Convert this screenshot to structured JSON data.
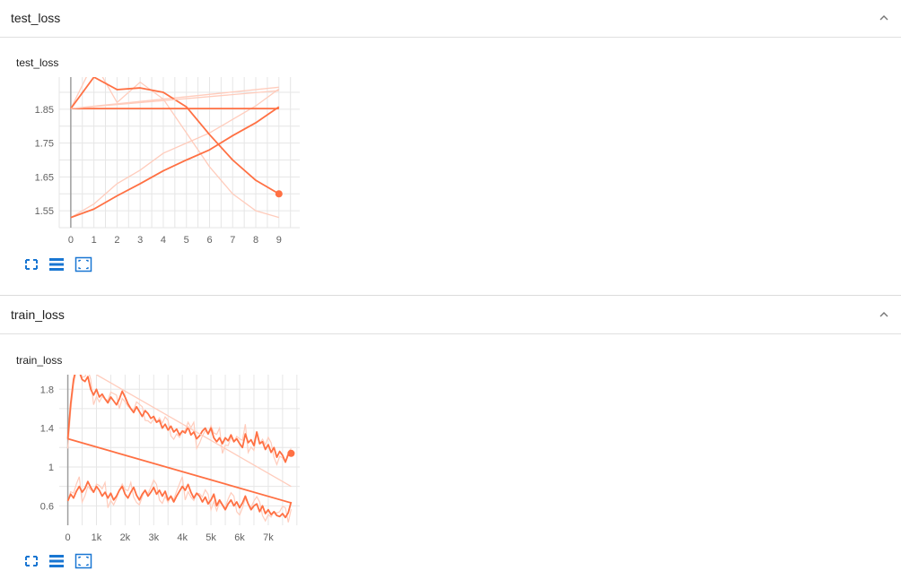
{
  "sections": [
    {
      "header": "test_loss",
      "card_title": "test_loss"
    },
    {
      "header": "train_loss",
      "card_title": "train_loss"
    }
  ],
  "colors": {
    "series": "#ff7043",
    "series_light": "#ffccbc",
    "grid": "#e6e6e6",
    "axis": "#9e9e9e",
    "tool_icon": "#1976d2"
  },
  "icons": [
    "expand-icon",
    "data-table-icon",
    "fit-domain-icon",
    "chevron-up-icon"
  ],
  "chart_data": [
    {
      "type": "line",
      "title": "test_loss",
      "xlim": [
        -0.5,
        9.9
      ],
      "ylim": [
        1.5,
        1.945
      ],
      "x_ticks": [
        0,
        1,
        2,
        3,
        4,
        5,
        6,
        7,
        8,
        9
      ],
      "y_ticks": [
        1.55,
        1.65,
        1.75,
        1.85
      ],
      "x_tick_labels": [
        "0",
        "1",
        "2",
        "3",
        "4",
        "5",
        "6",
        "7",
        "8",
        "9"
      ],
      "y_tick_labels": [
        "1.55",
        "1.65",
        "1.75",
        "1.85"
      ],
      "grid": true,
      "series": [
        {
          "x": [
            0,
            1,
            2,
            3,
            4,
            5,
            6,
            7,
            8,
            9
          ],
          "y": [
            1.852,
            1.945,
            1.908,
            1.913,
            1.9,
            1.857,
            1.775,
            1.7,
            1.64,
            1.6
          ],
          "raw_y": [
            1.852,
            1.99,
            1.87,
            1.93,
            1.88,
            1.78,
            1.68,
            1.6,
            1.55,
            1.53
          ],
          "end_marker": true
        },
        {
          "x": [
            0,
            9
          ],
          "y": [
            1.852,
            1.852
          ],
          "raw_y": [
            1.852,
            1.852
          ]
        },
        {
          "x": [
            0,
            1,
            2,
            3,
            4,
            5,
            6,
            7,
            8,
            9
          ],
          "y": [
            1.53,
            1.555,
            1.594,
            1.63,
            1.668,
            1.7,
            1.73,
            1.772,
            1.81,
            1.857
          ],
          "raw_y": [
            1.53,
            1.57,
            1.63,
            1.67,
            1.72,
            1.75,
            1.78,
            1.82,
            1.86,
            1.91
          ]
        },
        {
          "x": [
            0,
            9
          ],
          "y": [
            1.852,
            1.905
          ],
          "raw_y": [
            1.852,
            1.915
          ]
        }
      ]
    },
    {
      "type": "line",
      "title": "train_loss",
      "xlim": [
        -300,
        8100
      ],
      "ylim": [
        0.4,
        1.95
      ],
      "x_ticks": [
        0,
        1000,
        2000,
        3000,
        4000,
        5000,
        6000,
        7000
      ],
      "y_ticks": [
        0.6,
        1.0,
        1.4,
        1.8
      ],
      "x_tick_labels": [
        "0",
        "1k",
        "2k",
        "3k",
        "4k",
        "5k",
        "6k",
        "7k"
      ],
      "y_tick_labels": [
        "0.6",
        "1",
        "1.4",
        "1.8"
      ],
      "grid": true,
      "series": [
        {
          "x": [
            0,
            100,
            200,
            300,
            400,
            500,
            600,
            700,
            800,
            900,
            1000,
            1100,
            1200,
            1300,
            1400,
            1500,
            1600,
            1700,
            1800,
            1900,
            2000,
            2100,
            2200,
            2300,
            2400,
            2500,
            2600,
            2700,
            2800,
            2900,
            3000,
            3100,
            3200,
            3300,
            3400,
            3500,
            3600,
            3700,
            3800,
            3900,
            4000,
            4100,
            4200,
            4300,
            4400,
            4500,
            4600,
            4700,
            4800,
            4900,
            5000,
            5100,
            5200,
            5300,
            5400,
            5500,
            5600,
            5700,
            5800,
            5900,
            6000,
            6100,
            6200,
            6300,
            6400,
            6500,
            6600,
            6700,
            6800,
            6900,
            7000,
            7100,
            7200,
            7300,
            7400,
            7500,
            7600,
            7700,
            7800
          ],
          "y": [
            1.29,
            1.65,
            1.9,
            2.02,
            1.98,
            1.9,
            1.88,
            1.93,
            1.8,
            1.74,
            1.8,
            1.72,
            1.75,
            1.7,
            1.66,
            1.72,
            1.68,
            1.64,
            1.7,
            1.78,
            1.72,
            1.65,
            1.6,
            1.56,
            1.62,
            1.57,
            1.52,
            1.58,
            1.55,
            1.5,
            1.52,
            1.46,
            1.48,
            1.4,
            1.44,
            1.38,
            1.42,
            1.36,
            1.39,
            1.33,
            1.37,
            1.35,
            1.41,
            1.33,
            1.36,
            1.29,
            1.32,
            1.37,
            1.4,
            1.34,
            1.4,
            1.3,
            1.26,
            1.3,
            1.24,
            1.3,
            1.27,
            1.33,
            1.26,
            1.29,
            1.24,
            1.2,
            1.34,
            1.25,
            1.28,
            1.22,
            1.36,
            1.24,
            1.26,
            1.18,
            1.23,
            1.15,
            1.2,
            1.1,
            1.16,
            1.12,
            1.05,
            1.13,
            1.14
          ],
          "end_marker": true
        },
        {
          "x": [
            0,
            7800
          ],
          "y": [
            1.29,
            0.63
          ]
        },
        {
          "x": [
            0,
            100,
            200,
            300,
            400,
            500,
            600,
            700,
            800,
            900,
            1000,
            1100,
            1200,
            1300,
            1400,
            1500,
            1600,
            1700,
            1800,
            1900,
            2000,
            2100,
            2200,
            2300,
            2400,
            2500,
            2600,
            2700,
            2800,
            2900,
            3000,
            3100,
            3200,
            3300,
            3400,
            3500,
            3600,
            3700,
            3800,
            3900,
            4000,
            4100,
            4200,
            4300,
            4400,
            4500,
            4600,
            4700,
            4800,
            4900,
            5000,
            5100,
            5200,
            5300,
            5400,
            5500,
            5600,
            5700,
            5800,
            5900,
            6000,
            6100,
            6200,
            6300,
            6400,
            6500,
            6600,
            6700,
            6800,
            6900,
            7000,
            7100,
            7200,
            7300,
            7400,
            7500,
            7600,
            7700,
            7800
          ],
          "y": [
            0.65,
            0.72,
            0.68,
            0.75,
            0.8,
            0.74,
            0.78,
            0.85,
            0.79,
            0.74,
            0.8,
            0.76,
            0.7,
            0.74,
            0.68,
            0.73,
            0.66,
            0.7,
            0.76,
            0.8,
            0.72,
            0.68,
            0.74,
            0.79,
            0.71,
            0.66,
            0.72,
            0.76,
            0.7,
            0.74,
            0.79,
            0.72,
            0.76,
            0.7,
            0.75,
            0.66,
            0.7,
            0.64,
            0.7,
            0.75,
            0.8,
            0.76,
            0.82,
            0.74,
            0.68,
            0.73,
            0.7,
            0.64,
            0.69,
            0.62,
            0.66,
            0.72,
            0.6,
            0.66,
            0.61,
            0.56,
            0.62,
            0.66,
            0.6,
            0.64,
            0.58,
            0.63,
            0.7,
            0.62,
            0.56,
            0.6,
            0.62,
            0.54,
            0.6,
            0.52,
            0.56,
            0.51,
            0.54,
            0.5,
            0.49,
            0.52,
            0.48,
            0.53,
            0.64
          ]
        },
        {
          "x": [
            1000,
            7800
          ],
          "y": [
            1.95,
            0.8
          ]
        }
      ]
    }
  ]
}
